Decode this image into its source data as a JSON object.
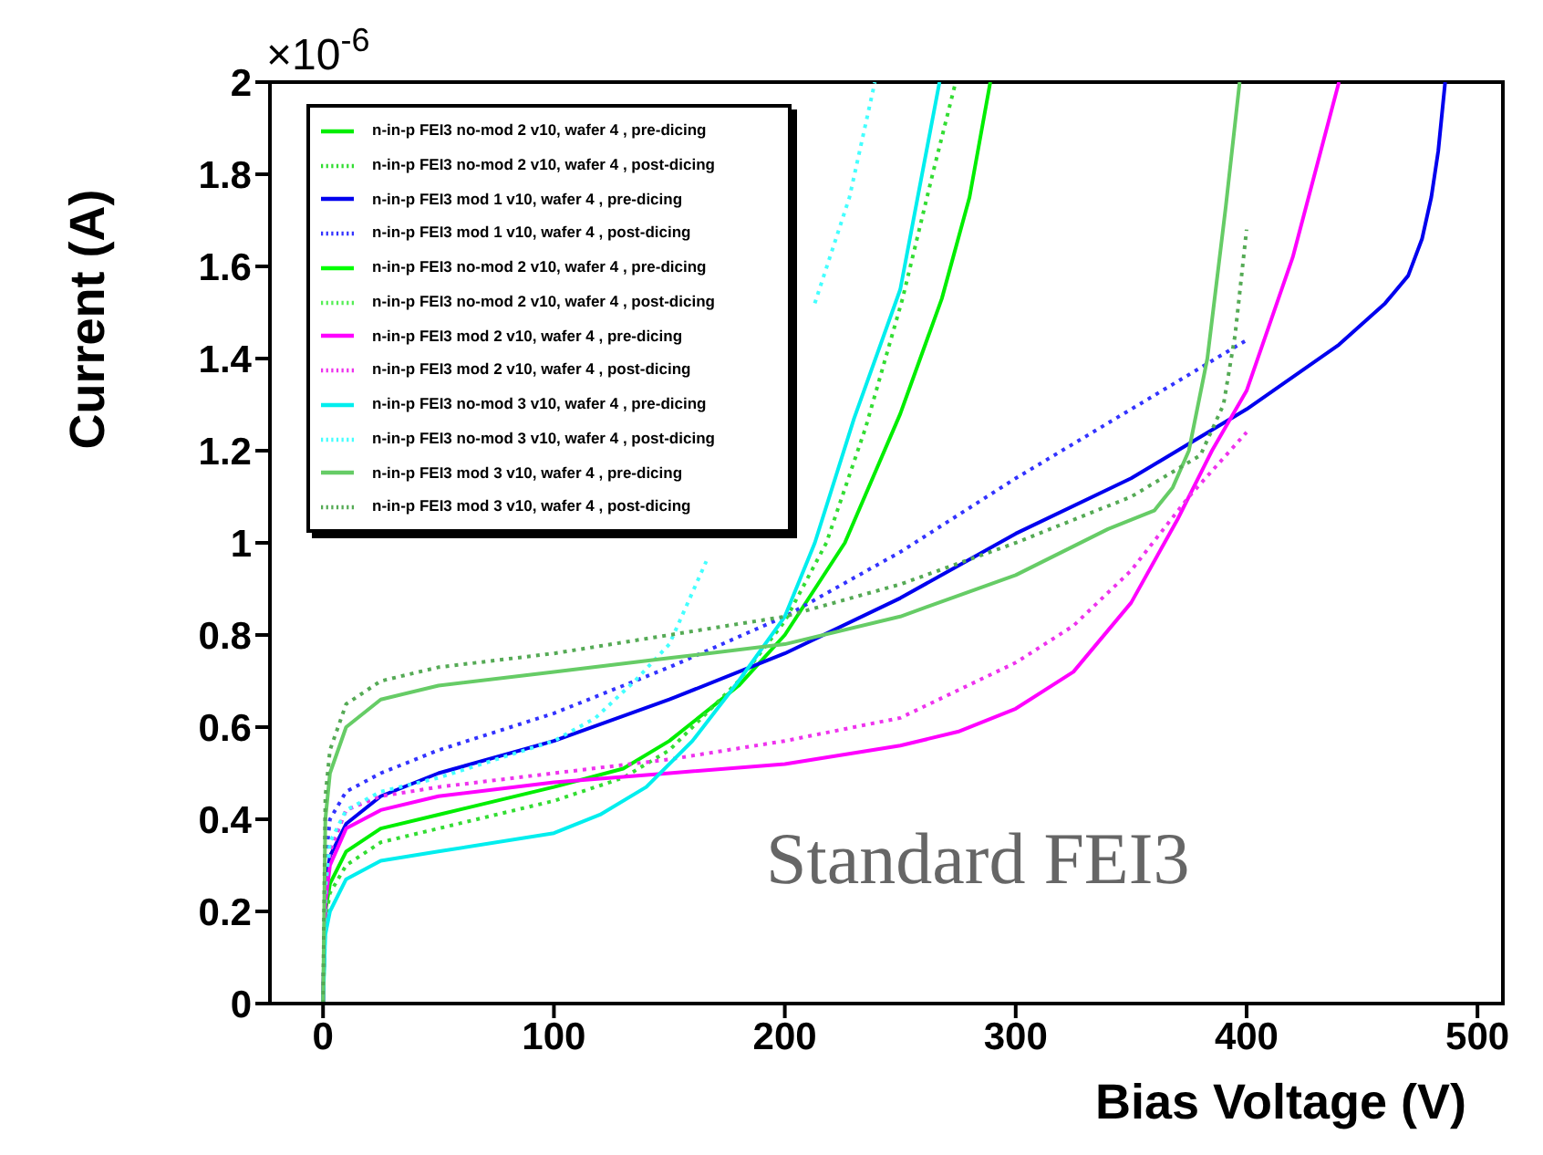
{
  "chart_data": {
    "type": "line",
    "xlabel": "Bias Voltage (V)",
    "ylabel": "Current (A)",
    "xlim": [
      -23,
      511
    ],
    "xticks": [
      0,
      100,
      200,
      300,
      400,
      500
    ],
    "ylim": [
      0,
      2
    ],
    "yticks": [
      0,
      0.2,
      0.4,
      0.6,
      0.8,
      1,
      1.2,
      1.4,
      1.6,
      1.8,
      2
    ],
    "legend": "top left",
    "marker": "none",
    "annotations": [
      "×10$^{-6}$",
      "Standard FEI3"
    ],
    "series": [
      {
        "name": "n-in-p FEI3 no-mod 2 v10, wafer 4 , pre-dicing",
        "color": "#00ee00",
        "line_style": "solid",
        "x": [
          0,
          1,
          3,
          10,
          25,
          50,
          100,
          130,
          150,
          180,
          200,
          226,
          250,
          268,
          280,
          289
        ],
        "values": [
          0,
          0.2,
          0.26,
          0.33,
          0.38,
          0.41,
          0.47,
          0.51,
          0.57,
          0.69,
          0.8,
          1.0,
          1.28,
          1.53,
          1.75,
          2.0
        ]
      },
      {
        "name": "n-in-p FEI3 no-mod 2 v10, wafer 4 , post-dicing",
        "color": "#33dd33",
        "line_style": "dotted",
        "x": [
          0,
          1,
          3,
          10,
          25,
          50,
          100,
          130,
          150,
          180,
          200,
          218,
          235,
          251,
          264,
          274
        ],
        "values": [
          0,
          0.18,
          0.24,
          0.3,
          0.35,
          0.38,
          0.44,
          0.49,
          0.55,
          0.7,
          0.83,
          1.0,
          1.25,
          1.53,
          1.8,
          2.0
        ]
      },
      {
        "name": "n-in-p FEI3 mod 1 v10, wafer 4 , pre-dicing",
        "color": "#0000ee",
        "line_style": "solid",
        "x": [
          0,
          1,
          3,
          10,
          25,
          50,
          100,
          150,
          200,
          250,
          300,
          350,
          400,
          440,
          460,
          470,
          476,
          480,
          483,
          486
        ],
        "values": [
          0,
          0.25,
          0.32,
          0.39,
          0.45,
          0.5,
          0.57,
          0.66,
          0.76,
          0.88,
          1.02,
          1.14,
          1.29,
          1.43,
          1.52,
          1.58,
          1.66,
          1.75,
          1.85,
          2.0
        ]
      },
      {
        "name": "n-in-p FEI3 mod 1 v10, wafer 4 , post-dicing",
        "color": "#3333ff",
        "line_style": "dotted",
        "x": [
          0,
          1,
          3,
          10,
          25,
          50,
          100,
          150,
          200,
          250,
          300,
          350,
          400
        ],
        "values": [
          0,
          0.3,
          0.4,
          0.46,
          0.5,
          0.55,
          0.63,
          0.73,
          0.84,
          0.98,
          1.14,
          1.29,
          1.44
        ]
      },
      {
        "name": "n-in-p FEI3 no-mod 2 v10, wafer 4 , pre-dicing",
        "color": "#00ff00",
        "line_style": "solid"
      },
      {
        "name": "n-in-p FEI3 no-mod 2 v10, wafer 4 , post-dicing",
        "color": "#55ee55",
        "line_style": "dotted"
      },
      {
        "name": "n-in-p FEI3 mod 2 v10, wafer 4 , pre-dicing",
        "color": "#ff00ff",
        "line_style": "solid",
        "x": [
          0,
          1,
          3,
          10,
          25,
          50,
          100,
          150,
          200,
          250,
          275,
          300,
          325,
          350,
          370,
          385,
          400,
          420,
          440
        ],
        "values": [
          0,
          0.22,
          0.3,
          0.38,
          0.42,
          0.45,
          0.48,
          0.5,
          0.52,
          0.56,
          0.59,
          0.64,
          0.72,
          0.87,
          1.05,
          1.2,
          1.33,
          1.62,
          2.0
        ]
      },
      {
        "name": "n-in-p FEI3 mod 2 v10, wafer 4 , post-dicing",
        "color": "#ee33ee",
        "line_style": "dotted",
        "x": [
          0,
          1,
          3,
          10,
          25,
          50,
          100,
          150,
          200,
          250,
          300,
          325,
          350,
          375,
          400
        ],
        "values": [
          0,
          0.25,
          0.33,
          0.42,
          0.45,
          0.47,
          0.5,
          0.53,
          0.57,
          0.62,
          0.74,
          0.82,
          0.94,
          1.1,
          1.24
        ]
      },
      {
        "name": "n-in-p FEI3 no-mod 3 v10, wafer 4 , pre-dicing",
        "color": "#00eeee",
        "line_style": "solid",
        "x": [
          0,
          1,
          3,
          10,
          25,
          50,
          100,
          120,
          140,
          160,
          180,
          200,
          213,
          230,
          250,
          267
        ],
        "values": [
          0,
          0.15,
          0.2,
          0.27,
          0.31,
          0.33,
          0.37,
          0.41,
          0.47,
          0.57,
          0.7,
          0.84,
          1.0,
          1.27,
          1.55,
          2.0
        ]
      },
      {
        "name": "n-in-p FEI3 no-mod 3 v10, wafer 4 , post-dicing",
        "color": "#44ffff",
        "line_style": "dotted",
        "x": [
          0,
          1,
          3,
          10,
          25,
          50,
          100,
          118,
          135,
          150,
          166,
          173,
          190,
          213,
          228,
          239
        ],
        "values": [
          0,
          0.25,
          0.35,
          0.42,
          0.46,
          0.49,
          0.57,
          0.62,
          0.7,
          0.78,
          0.96,
          null,
          null,
          1.52,
          1.75,
          2.0
        ]
      },
      {
        "name": "n-in-p FEI3 mod 3 v10, wafer 4 , pre-dicing",
        "color": "#66cc66",
        "line_style": "solid",
        "x": [
          0,
          1,
          3,
          10,
          25,
          50,
          100,
          150,
          200,
          250,
          300,
          340,
          360,
          368,
          375,
          383,
          391,
          397
        ],
        "values": [
          0,
          0.4,
          0.5,
          0.6,
          0.66,
          0.69,
          0.72,
          0.75,
          0.78,
          0.84,
          0.93,
          1.03,
          1.07,
          1.12,
          1.2,
          1.4,
          1.73,
          2.0
        ]
      },
      {
        "name": "n-in-p FEI3 mod 3 v10, wafer 4 , post-dicing",
        "color": "#55aa55",
        "line_style": "dotted",
        "x": [
          0,
          1,
          3,
          10,
          25,
          50,
          100,
          150,
          200,
          250,
          300,
          350,
          380,
          390,
          395,
          400
        ],
        "values": [
          0,
          0.45,
          0.55,
          0.65,
          0.7,
          0.73,
          0.76,
          0.8,
          0.84,
          0.91,
          1.0,
          1.1,
          1.19,
          1.3,
          1.45,
          1.68
        ]
      }
    ]
  }
}
